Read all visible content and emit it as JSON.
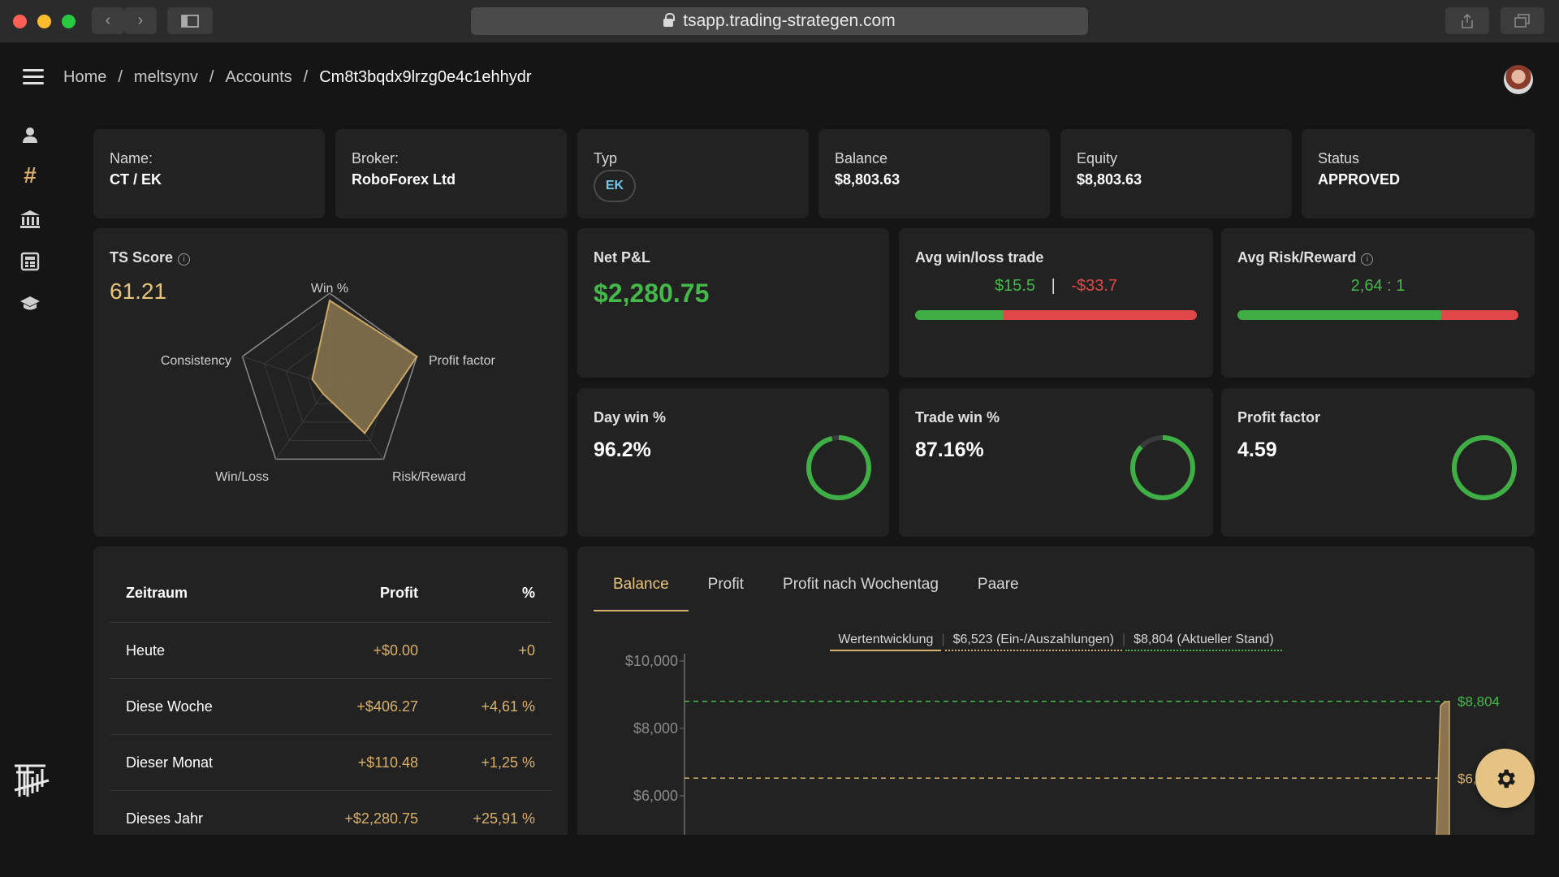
{
  "browser": {
    "url": "tsapp.trading-strategen.com"
  },
  "header": {
    "breadcrumb": [
      "Home",
      "meltsynv",
      "Accounts",
      "Cm8t3bqdx9lrzg0e4c1ehhydr"
    ]
  },
  "sidebar": {
    "icons": [
      "user-icon",
      "hashtag-icon",
      "bank-icon",
      "calculator-icon",
      "graduation-cap-icon"
    ]
  },
  "account": {
    "name_label": "Name:",
    "name_value": "CT / EK",
    "broker_label": "Broker:",
    "broker_value": "RoboForex Ltd",
    "type_label": "Typ",
    "type_value": "EK",
    "balance_label": "Balance",
    "balance_value": "$8,803.63",
    "equity_label": "Equity",
    "equity_value": "$8,803.63",
    "status_label": "Status",
    "status_value": "APPROVED"
  },
  "ts_score": {
    "title": "TS Score",
    "value": "61.21",
    "axes": [
      "Win %",
      "Profit factor",
      "Risk/Reward",
      "Win/Loss",
      "Consistency"
    ],
    "values": [
      0.92,
      1.0,
      0.65,
      0.12,
      0.2
    ]
  },
  "net_pnl": {
    "title": "Net P&L",
    "value": "$2,280.75"
  },
  "avg_win_loss": {
    "title": "Avg win/loss trade",
    "win": "$15.5",
    "separator": "|",
    "loss": "-$33.7",
    "win_fraction": 0.315
  },
  "avg_rr": {
    "title": "Avg Risk/Reward",
    "value": "2,64 : 1",
    "fraction": 0.725
  },
  "day_win": {
    "title": "Day win %",
    "value": "96.2%",
    "fraction": 0.962
  },
  "trade_win": {
    "title": "Trade win %",
    "value": "87.16%",
    "fraction": 0.8716
  },
  "profit_factor": {
    "title": "Profit factor",
    "value": "4.59",
    "fraction": 1.0
  },
  "periods": {
    "headers": [
      "Zeitraum",
      "Profit",
      "%"
    ],
    "rows": [
      {
        "period": "Heute",
        "profit": "+$0.00",
        "pct": "+0"
      },
      {
        "period": "Diese Woche",
        "profit": "+$406.27",
        "pct": "+4,61 %"
      },
      {
        "period": "Dieser Monat",
        "profit": "+$110.48",
        "pct": "+1,25 %"
      },
      {
        "period": "Dieses Jahr",
        "profit": "+$2,280.75",
        "pct": "+25,91 %"
      }
    ]
  },
  "tabs": [
    "Balance",
    "Profit",
    "Profit nach Wochentag",
    "Paare"
  ],
  "legend": [
    "Wertentwicklung",
    "$6,523 (Ein-/Auszahlungen)",
    "$8,804 (Aktueller Stand)"
  ],
  "chart_data": {
    "type": "area",
    "title": "",
    "ylabel": "",
    "y_ticks": [
      "$10,000",
      "$8,000",
      "$6,000"
    ],
    "ylim": [
      5000,
      10000
    ],
    "reference_lines": [
      {
        "name": "$8,804",
        "value": 8804,
        "label": "$8,804",
        "color": "#45b84a"
      },
      {
        "name": "$6,523",
        "value": 6523,
        "label": "$6,5",
        "color": "#d8b06a"
      }
    ],
    "series": [
      {
        "name": "Wertentwicklung",
        "color": "#d8b06a"
      }
    ]
  },
  "colors": {
    "accent": "#d8b06a",
    "positive": "#45b84a",
    "negative": "#e04848",
    "card": "#222222",
    "background": "#151515"
  }
}
